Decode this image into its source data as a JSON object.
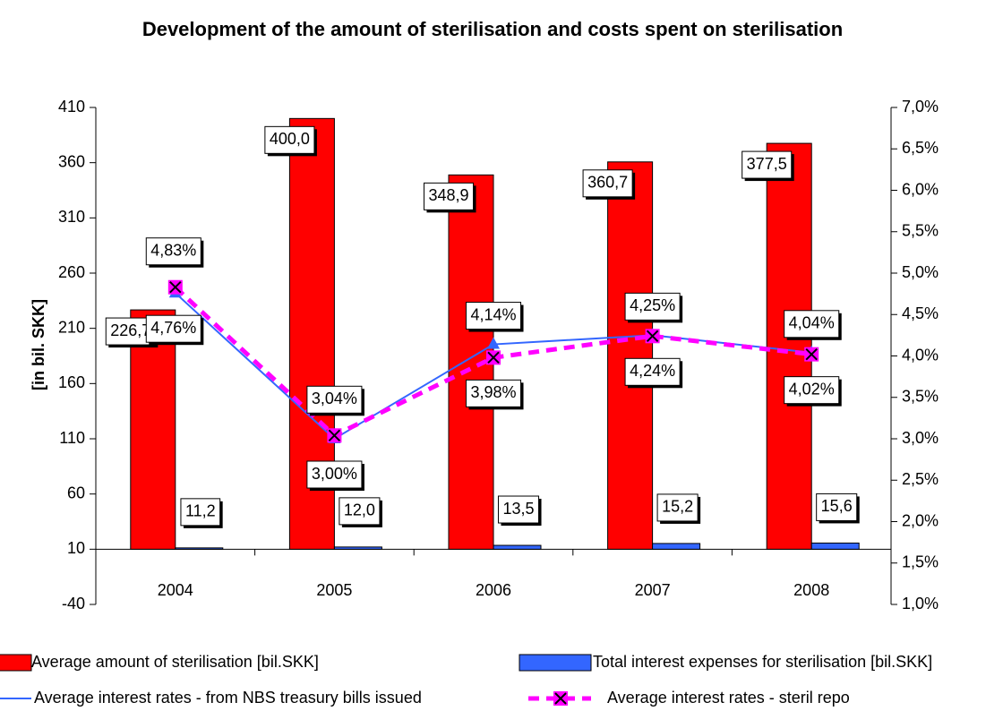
{
  "chart_data": {
    "type": "bar",
    "title": "Development of the amount of sterilisation and costs spent on sterilisation",
    "y_axis_label": "[in bil. SKK]",
    "categories": [
      "2004",
      "2005",
      "2006",
      "2007",
      "2008"
    ],
    "ylim": [
      -40,
      410
    ],
    "yticks": [
      -40,
      10,
      60,
      110,
      160,
      210,
      260,
      310,
      360,
      410
    ],
    "x_axis_at": 10,
    "y2lim": [
      1.0,
      7.0
    ],
    "y2ticks": [
      {
        "value": 1.0,
        "label": "1,0%"
      },
      {
        "value": 1.5,
        "label": "1,5%"
      },
      {
        "value": 2.0,
        "label": "2,0%"
      },
      {
        "value": 2.5,
        "label": "2,5%"
      },
      {
        "value": 3.0,
        "label": "3,0%"
      },
      {
        "value": 3.5,
        "label": "3,5%"
      },
      {
        "value": 4.0,
        "label": "4,0%"
      },
      {
        "value": 4.5,
        "label": "4,5%"
      },
      {
        "value": 5.0,
        "label": "5,0%"
      },
      {
        "value": 5.5,
        "label": "5,5%"
      },
      {
        "value": 6.0,
        "label": "6,0%"
      },
      {
        "value": 6.5,
        "label": "6,5%"
      },
      {
        "value": 7.0,
        "label": "7,0%"
      }
    ],
    "series": [
      {
        "name": "Average amount of sterilisation [bil.SKK]",
        "type": "bar",
        "color": "#ff0000",
        "values": [
          226.7,
          400.0,
          348.9,
          360.7,
          377.5
        ],
        "value_labels": [
          "226,7",
          "400,0",
          "348,9",
          "360,7",
          "377,5"
        ]
      },
      {
        "name": "Total interest expenses for sterilisation [bil.SKK]",
        "type": "bar",
        "color": "#3366ff",
        "values": [
          11.2,
          12.0,
          13.5,
          15.2,
          15.6
        ],
        "value_labels": [
          "11,2",
          "12,0",
          "13,5",
          "15,2",
          "15,6"
        ]
      },
      {
        "name": "Average interest rates - from NBS treasury bills issued",
        "type": "line",
        "axis": "y2",
        "color": "#3366ff",
        "values": [
          4.76,
          3.0,
          4.14,
          4.25,
          4.04
        ],
        "value_labels": [
          "4,76%",
          "3,00%",
          "4,14%",
          "4,25%",
          "4,04%"
        ]
      },
      {
        "name": "Average interest rates - steril repo",
        "type": "line",
        "axis": "y2",
        "color": "#ff00ff",
        "dashed": true,
        "values": [
          4.83,
          3.04,
          3.98,
          4.24,
          4.02
        ],
        "value_labels": [
          "4,83%",
          "3,04%",
          "3,98%",
          "4,24%",
          "4,02%"
        ]
      }
    ]
  }
}
